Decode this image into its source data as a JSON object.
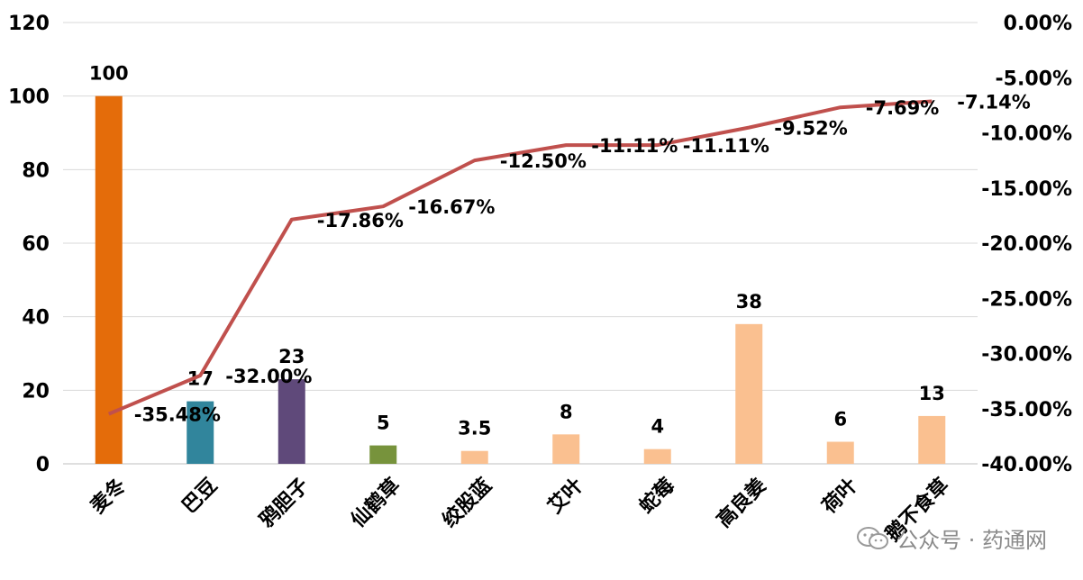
{
  "chart_data": {
    "type": "bar",
    "categories": [
      "麦冬",
      "巴豆",
      "鸦胆子",
      "仙鹤草",
      "绞股蓝",
      "艾叶",
      "蛇莓",
      "高良姜",
      "荷叶",
      "鹅不食草"
    ],
    "series": [
      {
        "type": "bar",
        "axis": "left",
        "values": [
          100,
          17,
          23,
          5,
          3.5,
          8,
          4,
          38,
          6,
          13
        ],
        "labels": [
          "100",
          "17",
          "23",
          "5",
          "3.5",
          "8",
          "4",
          "38",
          "6",
          "13"
        ],
        "colors": [
          "#E46C0A",
          "#31859C",
          "#5F497A",
          "#77933C",
          "#FAC090",
          "#FAC090",
          "#FAC090",
          "#FAC090",
          "#FAC090",
          "#FAC090"
        ]
      },
      {
        "type": "line",
        "axis": "right",
        "values": [
          -35.48,
          -32.0,
          -17.86,
          -16.67,
          -12.5,
          -11.11,
          -11.11,
          -9.52,
          -7.69,
          -7.14
        ],
        "labels": [
          "-35.48%",
          "-32.00%",
          "-17.86%",
          "-16.67%",
          "-12.50%",
          "-11.11%",
          "-11.11%",
          "-9.52%",
          "-7.69%",
          "-7.14%"
        ],
        "color": "#C0504D"
      }
    ],
    "left_axis": {
      "min": 0,
      "max": 120,
      "ticks": [
        "0",
        "20",
        "40",
        "60",
        "80",
        "100",
        "120"
      ]
    },
    "right_axis": {
      "min": -40,
      "max": 0,
      "ticks": [
        "-40.00%",
        "-35.00%",
        "-30.00%",
        "-25.00%",
        "-20.00%",
        "-15.00%",
        "-10.00%",
        "-5.00%",
        "0.00%"
      ]
    },
    "grid": true
  },
  "watermark": {
    "text": "公众号 · 药通网"
  }
}
